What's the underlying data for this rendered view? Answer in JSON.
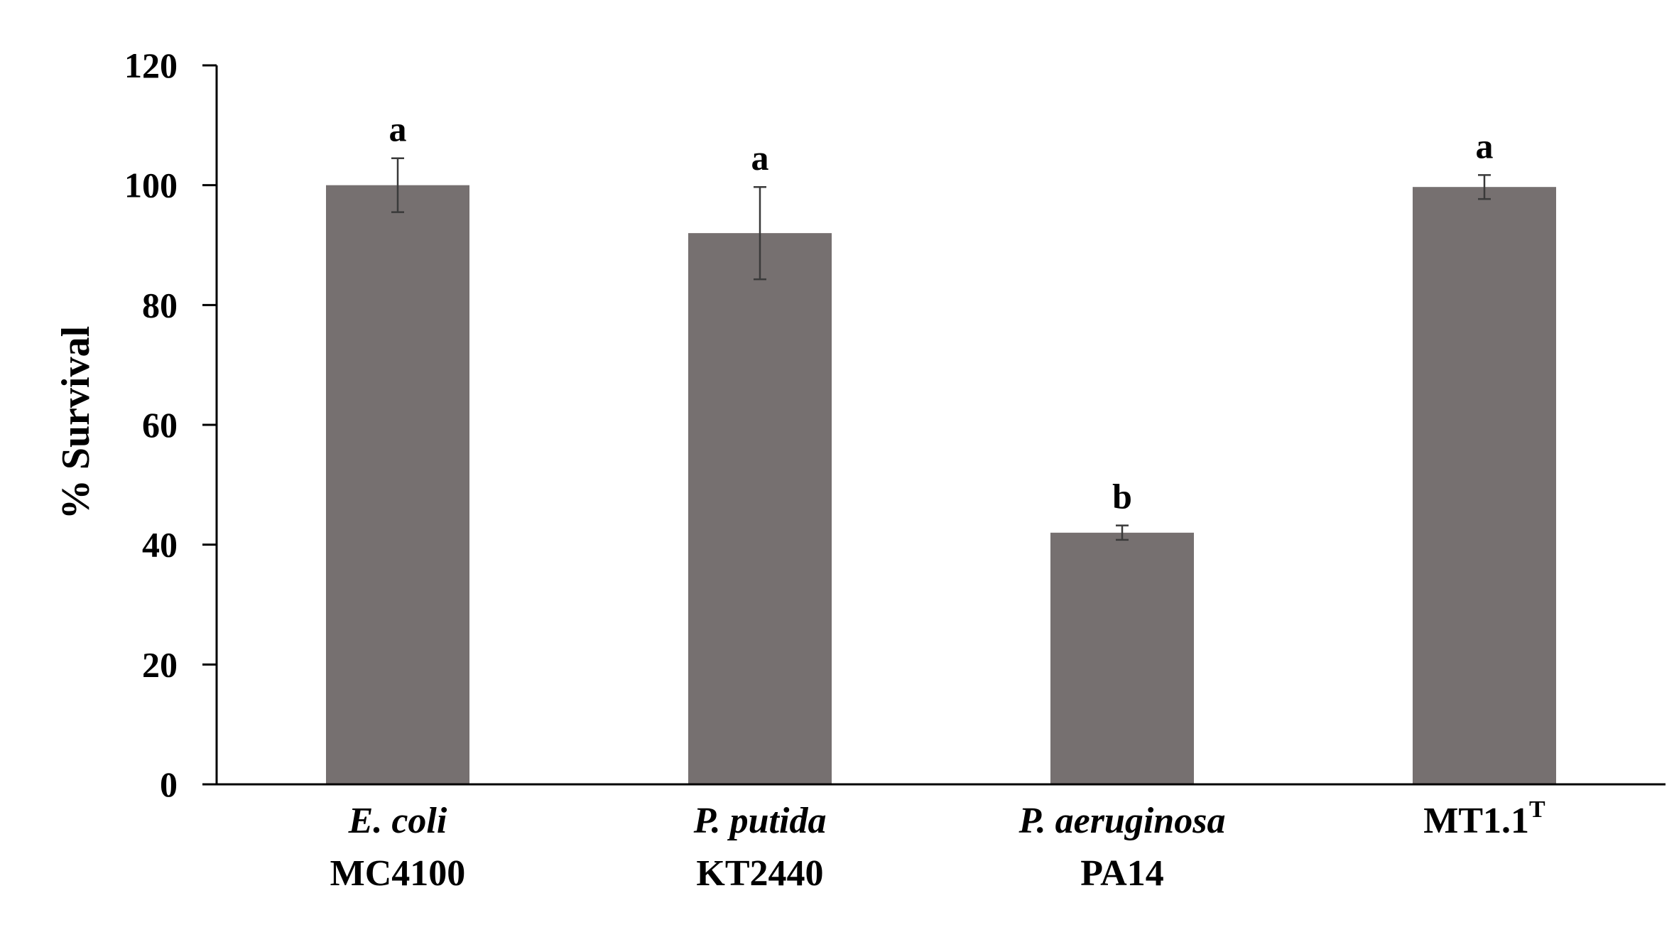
{
  "chart_data": {
    "type": "bar",
    "title": "",
    "xlabel": "",
    "ylabel": "% Survival",
    "ylim": [
      0,
      120
    ],
    "yticks": [
      0,
      20,
      40,
      60,
      80,
      100,
      120
    ],
    "grid": false,
    "legend": "none",
    "bar_color": "#767070",
    "categories": [
      {
        "line1": "E. coli",
        "line1_italic": true,
        "line2": "MC4100",
        "sup": ""
      },
      {
        "line1": "P. putida",
        "line1_italic": true,
        "line2": "KT2440",
        "sup": ""
      },
      {
        "line1": "P. aeruginosa",
        "line1_italic": true,
        "line2": "PA14",
        "sup": ""
      },
      {
        "line1": "MT1.1",
        "line1_italic": false,
        "line2": "",
        "sup": "T"
      }
    ],
    "values": [
      100,
      92,
      42,
      99.7
    ],
    "errors": [
      4.5,
      7.7,
      1.2,
      2.0
    ],
    "significance": [
      "a",
      "a",
      "b",
      "a"
    ]
  }
}
